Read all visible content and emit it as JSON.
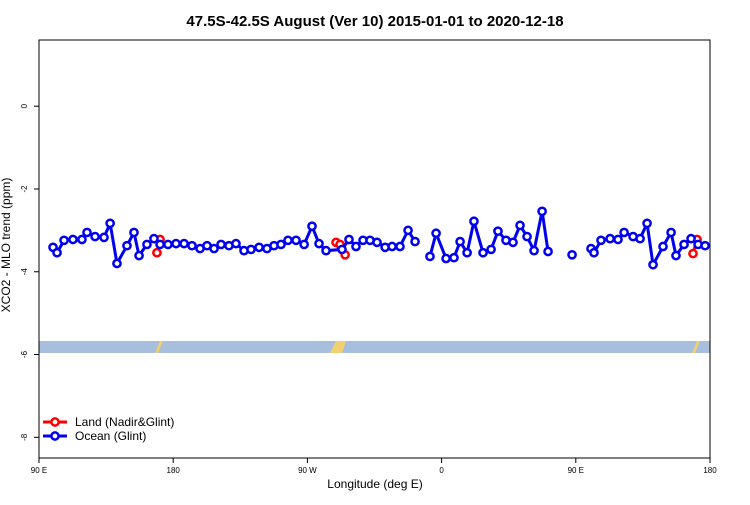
{
  "chart_data": {
    "type": "line",
    "title": "47.5S-42.5S August (Ver 10)   2015-01-01 to 2020-12-18",
    "x_label": "Longitude (deg E)",
    "y_label": "XCO2 - MLO trend (ppm)",
    "xlim": [
      90,
      540
    ],
    "ylim": [
      -8.5,
      1.6
    ],
    "xticks": [
      {
        "value": 90,
        "label": "90 E"
      },
      180,
      {
        "value": 270,
        "label": "90 W"
      },
      {
        "value": 360,
        "label": "0"
      },
      {
        "value": 450,
        "label": "90 E"
      },
      {
        "value": 540,
        "label": "180"
      }
    ],
    "yticks": [
      0,
      -2,
      -4,
      -6,
      -8
    ],
    "legend": "bottom-left",
    "series": [
      {
        "name": "Ocean (Glint)",
        "color": "#0000ee",
        "x": [
          99.4,
          102.1,
          106.8,
          112.8,
          118.8,
          122.2,
          127.6,
          133.6,
          137.7,
          142.3,
          149.0,
          153.7,
          157.1,
          162.4,
          167.1,
          171.2,
          176.5,
          181.9,
          187.3,
          192.6,
          198.0,
          202.7,
          207.4,
          212.1,
          217.4,
          222.1,
          227.5,
          232.2,
          237.6,
          242.9,
          247.6,
          252.3,
          257.0,
          262.4,
          267.8,
          273.1,
          277.8,
          282.5,
          293.2,
          297.9,
          302.6,
          307.3,
          312.0,
          316.7,
          322.1,
          326.8,
          332.1,
          337.5,
          342.2,
          347.2,
          352.2,
          356.3,
          363.0,
          368.3,
          372.4,
          377.1,
          381.7,
          387.8,
          393.2,
          397.8,
          403.2,
          407.9,
          412.6,
          417.3,
          422.0,
          427.4,
          431.4,
          439.5,
          447.5,
          453.9,
          460.2,
          462.2,
          466.9,
          473.0,
          478.3,
          482.4,
          488.4,
          493.1,
          497.8,
          501.8,
          508.5,
          513.9,
          517.2,
          522.6,
          527.3,
          532.0,
          536.7
        ],
        "values": [
          -3.41,
          -3.54,
          -3.24,
          -3.22,
          -3.22,
          -3.05,
          -3.15,
          -3.17,
          -2.83,
          -3.8,
          -3.37,
          -3.05,
          -3.61,
          -3.34,
          -3.2,
          -3.34,
          -3.34,
          -3.32,
          -3.32,
          -3.37,
          -3.44,
          -3.37,
          -3.44,
          -3.34,
          -3.37,
          -3.32,
          -3.49,
          -3.46,
          -3.41,
          -3.44,
          -3.37,
          -3.34,
          -3.24,
          -3.24,
          -3.34,
          -2.9,
          -3.32,
          -3.49,
          -3.46,
          -3.22,
          -3.39,
          -3.24,
          -3.24,
          -3.29,
          -3.41,
          -3.39,
          -3.39,
          -3.0,
          -3.27,
          null,
          -3.63,
          -3.07,
          -3.68,
          -3.66,
          -3.27,
          -3.54,
          -2.78,
          -3.54,
          -3.46,
          -3.02,
          -3.24,
          -3.29,
          -2.88,
          -3.15,
          -3.49,
          -2.54,
          -3.51,
          null,
          -3.59,
          null,
          -3.44,
          -3.54,
          -3.24,
          -3.2,
          -3.22,
          -3.05,
          -3.15,
          -3.2,
          -2.83,
          -3.83,
          -3.39,
          -3.05,
          -3.61,
          -3.34,
          -3.2,
          -3.34,
          -3.37
        ]
      },
      {
        "name": "Land (Nadir&Glint)",
        "color": "#ff0000",
        "x": [
          169.1,
          171.2,
          230.0,
          289.2,
          291.9,
          295.3,
          412.0,
          528.6,
          531.3
        ],
        "values": [
          -3.54,
          -3.22,
          null,
          -3.29,
          -3.34,
          -3.59,
          null,
          -3.56,
          -3.22
        ]
      }
    ]
  }
}
